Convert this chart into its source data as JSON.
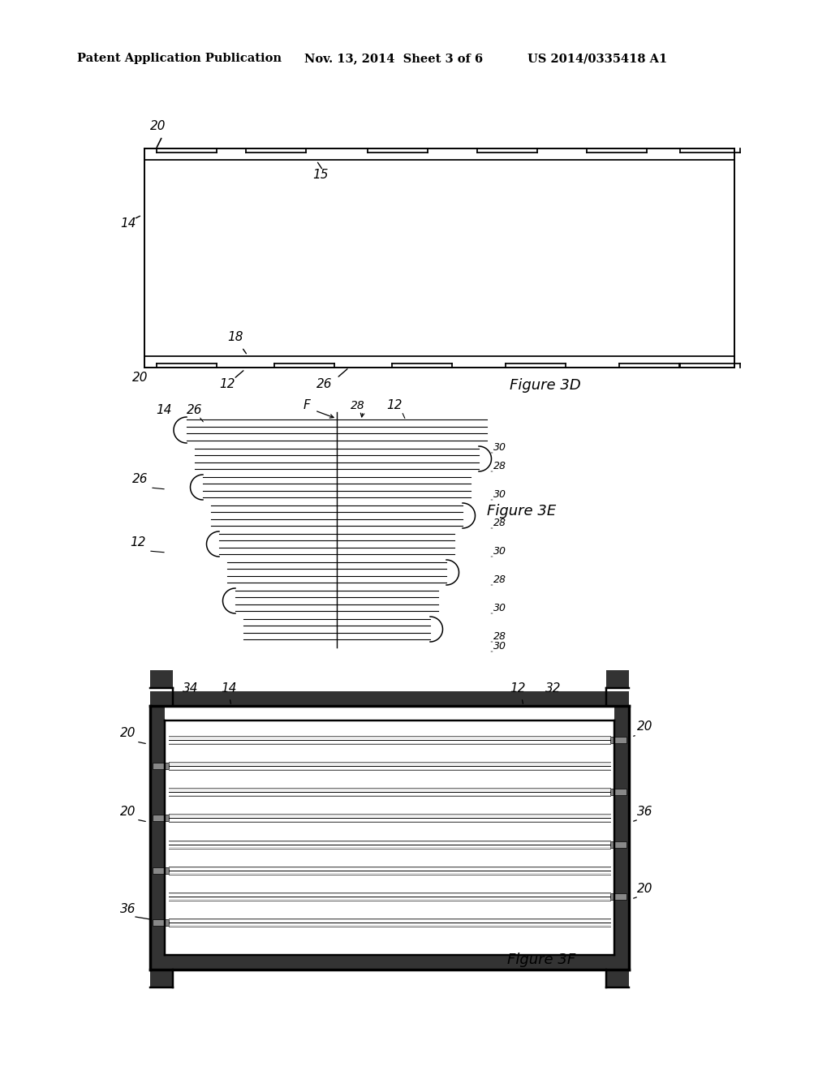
{
  "background_color": "#ffffff",
  "header_left": "Patent Application Publication",
  "header_mid": "Nov. 13, 2014  Sheet 3 of 6",
  "header_right": "US 2014/0335418 A1",
  "fig3d_label": "Figure 3D",
  "fig3e_label": "Figure 3E",
  "fig3f_label": "Figure 3F"
}
